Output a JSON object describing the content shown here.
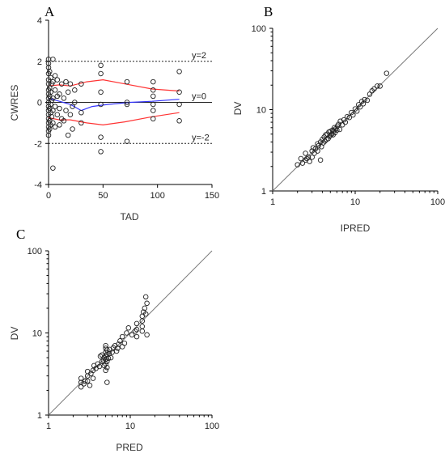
{
  "chart_data": [
    {
      "panel_label": "A",
      "type": "scatter",
      "xlabel": "TAD",
      "ylabel": "CWRES",
      "xlim": [
        0,
        150
      ],
      "ylim": [
        -4,
        4
      ],
      "xticks": [
        "0",
        "50",
        "100",
        "150"
      ],
      "yticks": [
        "4",
        "2",
        "0",
        "-2",
        "-4"
      ],
      "reference_lines": [
        {
          "label": "y=2",
          "y": 2
        },
        {
          "label": "y=0",
          "y": 0
        },
        {
          "label": "y=-2",
          "y": -2
        }
      ],
      "smooth_lines": [
        {
          "color": "#ff3333",
          "points": [
            [
              0,
              0.8
            ],
            [
              10,
              0.85
            ],
            [
              20,
              0.8
            ],
            [
              35,
              1.0
            ],
            [
              50,
              1.1
            ],
            [
              70,
              0.9
            ],
            [
              95,
              0.65
            ],
            [
              120,
              0.55
            ]
          ]
        },
        {
          "color": "#3333ff",
          "points": [
            [
              0,
              0.2
            ],
            [
              10,
              0.05
            ],
            [
              20,
              -0.1
            ],
            [
              30,
              -0.4
            ],
            [
              40,
              -0.2
            ],
            [
              55,
              -0.1
            ],
            [
              75,
              0.0
            ],
            [
              95,
              0.05
            ],
            [
              120,
              0.15
            ]
          ]
        },
        {
          "color": "#ff3333",
          "points": [
            [
              0,
              -0.75
            ],
            [
              10,
              -0.85
            ],
            [
              20,
              -0.85
            ],
            [
              35,
              -1.0
            ],
            [
              50,
              -1.1
            ],
            [
              70,
              -0.95
            ],
            [
              95,
              -0.7
            ],
            [
              120,
              -0.5
            ]
          ]
        }
      ],
      "points": [
        [
          0,
          2.1
        ],
        [
          0,
          1.9
        ],
        [
          0,
          1.7
        ],
        [
          0,
          1.4
        ],
        [
          0,
          1.1
        ],
        [
          0,
          0.9
        ],
        [
          0,
          0.6
        ],
        [
          0,
          0.4
        ],
        [
          0,
          0.2
        ],
        [
          0,
          0.0
        ],
        [
          0,
          -0.2
        ],
        [
          0,
          -0.4
        ],
        [
          0,
          -0.6
        ],
        [
          0,
          -0.8
        ],
        [
          0,
          -1.0
        ],
        [
          0,
          -1.2
        ],
        [
          0,
          -1.4
        ],
        [
          0,
          -1.6
        ],
        [
          1,
          1.5
        ],
        [
          1,
          0.7
        ],
        [
          1,
          0.3
        ],
        [
          1,
          -0.3
        ],
        [
          1,
          -0.9
        ],
        [
          1,
          -1.3
        ],
        [
          2,
          1.2
        ],
        [
          2,
          0.5
        ],
        [
          2,
          -0.1
        ],
        [
          2,
          -0.5
        ],
        [
          2,
          -1.1
        ],
        [
          3,
          0.9
        ],
        [
          3,
          0.1
        ],
        [
          3,
          -0.7
        ],
        [
          4,
          2.1
        ],
        [
          4,
          1.0
        ],
        [
          4,
          0.2
        ],
        [
          4,
          -0.4
        ],
        [
          4,
          -1.0
        ],
        [
          4,
          -3.2
        ],
        [
          6,
          1.3
        ],
        [
          6,
          0.6
        ],
        [
          6,
          -0.2
        ],
        [
          6,
          -1.2
        ],
        [
          8,
          1.1
        ],
        [
          8,
          0.3
        ],
        [
          8,
          -0.6
        ],
        [
          10,
          0.4
        ],
        [
          10,
          -0.3
        ],
        [
          10,
          -1.1
        ],
        [
          12,
          0.9
        ],
        [
          12,
          -0.8
        ],
        [
          14,
          0.2
        ],
        [
          14,
          -0.9
        ],
        [
          16,
          1.0
        ],
        [
          16,
          -0.4
        ],
        [
          18,
          0.5
        ],
        [
          18,
          -1.6
        ],
        [
          20,
          0.9
        ],
        [
          20,
          -0.6
        ],
        [
          22,
          -0.2
        ],
        [
          22,
          -1.3
        ],
        [
          24,
          0.6
        ],
        [
          24,
          0.0
        ],
        [
          30,
          0.9
        ],
        [
          30,
          -0.5
        ],
        [
          30,
          -1.0
        ],
        [
          48,
          1.8
        ],
        [
          48,
          1.4
        ],
        [
          48,
          0.5
        ],
        [
          48,
          -0.1
        ],
        [
          48,
          -1.7
        ],
        [
          48,
          -2.4
        ],
        [
          72,
          1.0
        ],
        [
          72,
          0.0
        ],
        [
          72,
          -0.1
        ],
        [
          72,
          -1.9
        ],
        [
          96,
          1.0
        ],
        [
          96,
          0.6
        ],
        [
          96,
          0.3
        ],
        [
          96,
          -0.1
        ],
        [
          96,
          -0.4
        ],
        [
          96,
          -0.8
        ],
        [
          120,
          1.5
        ],
        [
          120,
          0.5
        ],
        [
          120,
          -0.1
        ],
        [
          120,
          -0.9
        ]
      ]
    },
    {
      "panel_label": "B",
      "type": "scatter",
      "xlabel": "IPRED",
      "ylabel": "DV",
      "xscale": "log",
      "yscale": "log",
      "xlim": [
        1,
        100
      ],
      "ylim": [
        1,
        100
      ],
      "xticks": [
        "1",
        "10",
        "100"
      ],
      "yticks": [
        "100",
        "10",
        "1"
      ],
      "identity_line": true,
      "points": [
        [
          2.0,
          2.1
        ],
        [
          2.2,
          2.5
        ],
        [
          2.3,
          2.2
        ],
        [
          2.5,
          2.4
        ],
        [
          2.5,
          2.9
        ],
        [
          2.6,
          2.5
        ],
        [
          2.7,
          2.6
        ],
        [
          2.8,
          2.3
        ],
        [
          3.0,
          3.1
        ],
        [
          3.0,
          2.6
        ],
        [
          3.1,
          3.4
        ],
        [
          3.2,
          2.9
        ],
        [
          3.3,
          3.3
        ],
        [
          3.5,
          3.1
        ],
        [
          3.5,
          3.8
        ],
        [
          3.6,
          3.6
        ],
        [
          3.8,
          2.4
        ],
        [
          3.8,
          4.0
        ],
        [
          3.9,
          3.5
        ],
        [
          4.0,
          4.3
        ],
        [
          4.1,
          3.9
        ],
        [
          4.2,
          4.6
        ],
        [
          4.3,
          4.1
        ],
        [
          4.4,
          4.9
        ],
        [
          4.5,
          4.3
        ],
        [
          4.6,
          5.0
        ],
        [
          4.7,
          4.4
        ],
        [
          4.8,
          5.3
        ],
        [
          4.9,
          4.7
        ],
        [
          5.0,
          5.4
        ],
        [
          5.0,
          4.8
        ],
        [
          5.2,
          5.0
        ],
        [
          5.3,
          5.6
        ],
        [
          5.4,
          4.9
        ],
        [
          5.5,
          5.5
        ],
        [
          5.6,
          6.0
        ],
        [
          5.7,
          5.2
        ],
        [
          5.8,
          5.8
        ],
        [
          6.0,
          5.6
        ],
        [
          6.1,
          6.3
        ],
        [
          6.3,
          6.6
        ],
        [
          6.5,
          5.7
        ],
        [
          6.6,
          7.2
        ],
        [
          7.0,
          6.5
        ],
        [
          7.3,
          7.5
        ],
        [
          7.6,
          7.0
        ],
        [
          8.0,
          8.2
        ],
        [
          8.5,
          8.0
        ],
        [
          9.0,
          9.2
        ],
        [
          9.4,
          8.6
        ],
        [
          10.0,
          10.2
        ],
        [
          10.5,
          9.6
        ],
        [
          11.0,
          11.5
        ],
        [
          11.5,
          10.8
        ],
        [
          12.0,
          12.6
        ],
        [
          12.5,
          11.8
        ],
        [
          13.0,
          13.3
        ],
        [
          14.0,
          13.0
        ],
        [
          15.0,
          15.5
        ],
        [
          16.0,
          17.0
        ],
        [
          17.0,
          18.0
        ],
        [
          18.5,
          19.5
        ],
        [
          20.0,
          19.5
        ],
        [
          24.0,
          28.0
        ]
      ]
    },
    {
      "panel_label": "C",
      "type": "scatter",
      "xlabel": "PRED",
      "ylabel": "DV",
      "xscale": "log",
      "yscale": "log",
      "xlim": [
        1,
        100
      ],
      "ylim": [
        1,
        100
      ],
      "xticks": [
        "1",
        "10",
        "100"
      ],
      "yticks": [
        "100",
        "10",
        "1"
      ],
      "identity_line": true,
      "points": [
        [
          2.5,
          2.2
        ],
        [
          2.5,
          2.5
        ],
        [
          2.5,
          2.8
        ],
        [
          2.7,
          2.4
        ],
        [
          2.8,
          2.6
        ],
        [
          3.0,
          3.0
        ],
        [
          3.0,
          3.4
        ],
        [
          3.0,
          2.6
        ],
        [
          3.2,
          2.3
        ],
        [
          3.3,
          3.2
        ],
        [
          3.5,
          3.5
        ],
        [
          3.5,
          2.8
        ],
        [
          3.6,
          4.0
        ],
        [
          3.8,
          3.7
        ],
        [
          4.0,
          4.2
        ],
        [
          4.2,
          3.9
        ],
        [
          4.3,
          5.2
        ],
        [
          4.5,
          4.5
        ],
        [
          4.5,
          5.4
        ],
        [
          4.7,
          4.6
        ],
        [
          4.8,
          4.0
        ],
        [
          4.8,
          5.0
        ],
        [
          5.0,
          3.5
        ],
        [
          5.0,
          4.2
        ],
        [
          5.0,
          4.8
        ],
        [
          5.0,
          5.3
        ],
        [
          5.0,
          5.8
        ],
        [
          5.0,
          6.5
        ],
        [
          5.0,
          7.0
        ],
        [
          5.2,
          3.8
        ],
        [
          5.2,
          4.5
        ],
        [
          5.2,
          5.5
        ],
        [
          5.2,
          6.2
        ],
        [
          5.2,
          2.5
        ],
        [
          5.4,
          4.9
        ],
        [
          5.5,
          5.6
        ],
        [
          5.6,
          6.3
        ],
        [
          5.8,
          5.0
        ],
        [
          6.0,
          5.8
        ],
        [
          6.2,
          6.6
        ],
        [
          6.5,
          7.0
        ],
        [
          6.8,
          6.0
        ],
        [
          7.0,
          6.5
        ],
        [
          7.2,
          7.3
        ],
        [
          7.5,
          8.0
        ],
        [
          8.0,
          9.0
        ],
        [
          8.0,
          6.8
        ],
        [
          8.5,
          7.5
        ],
        [
          9.0,
          10.0
        ],
        [
          9.5,
          11.5
        ],
        [
          10.5,
          9.5
        ],
        [
          11.5,
          10.5
        ],
        [
          12.0,
          9.0
        ],
        [
          12.0,
          11.0
        ],
        [
          12.0,
          13.0
        ],
        [
          14.0,
          10.5
        ],
        [
          14.0,
          12.0
        ],
        [
          14.0,
          14.0
        ],
        [
          14.0,
          16.0
        ],
        [
          14.5,
          18.0
        ],
        [
          15.0,
          20.0
        ],
        [
          15.5,
          17.0
        ],
        [
          16.0,
          9.5
        ],
        [
          16.0,
          23.0
        ],
        [
          15.5,
          27.5
        ]
      ]
    }
  ]
}
